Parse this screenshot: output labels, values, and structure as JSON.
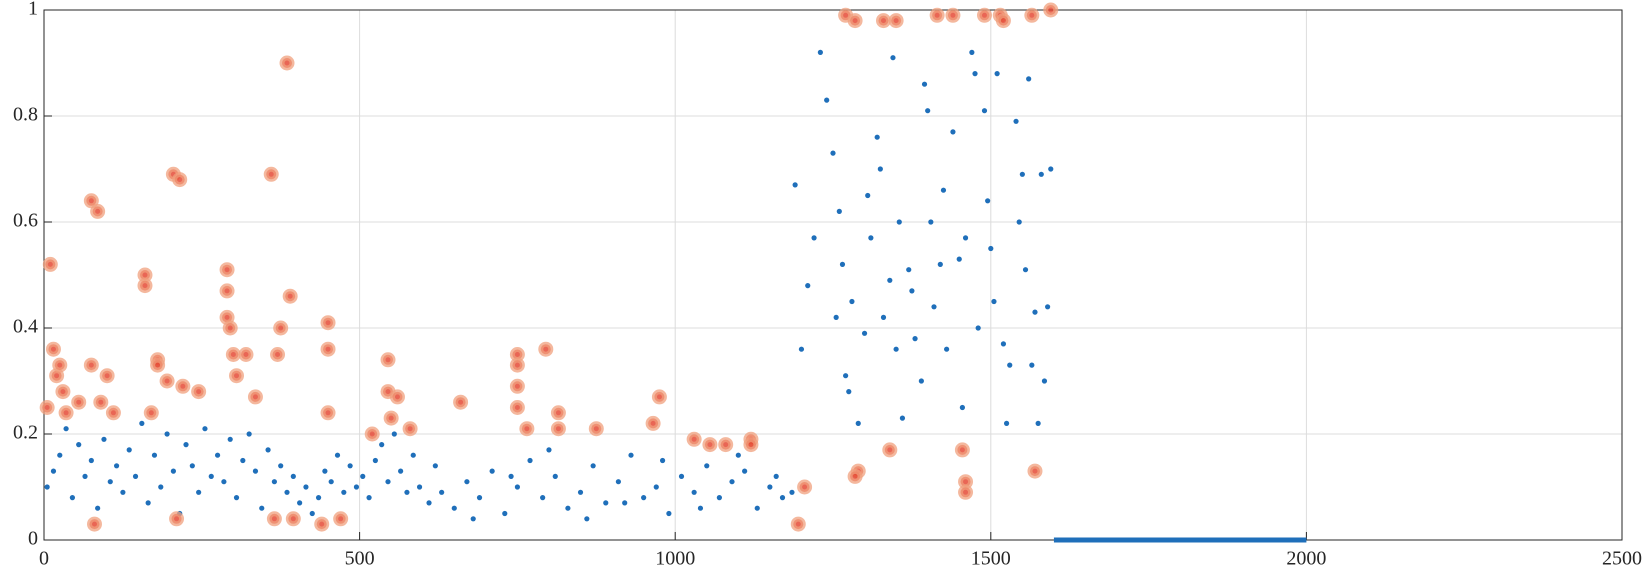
{
  "chart_data": {
    "type": "scatter",
    "xlim": [
      0,
      2500
    ],
    "xticks": [
      0,
      500,
      1000,
      1500,
      2000,
      2500
    ],
    "ylim": [
      0,
      1
    ],
    "yticks": [
      0,
      0.2,
      0.4,
      0.6,
      0.8,
      1
    ],
    "grid": true,
    "series": [
      {
        "style": "dot",
        "color": "#1f6fba",
        "x": [
          5,
          15,
          25,
          35,
          45,
          55,
          65,
          75,
          85,
          95,
          105,
          115,
          125,
          135,
          145,
          155,
          165,
          175,
          185,
          195,
          205,
          215,
          225,
          235,
          245,
          255,
          265,
          275,
          285,
          295,
          305,
          315,
          325,
          335,
          345,
          355,
          365,
          375,
          385,
          395,
          405,
          415,
          425,
          435,
          445,
          455,
          465,
          475,
          485,
          495,
          505,
          515,
          525,
          535,
          545,
          555,
          565,
          575,
          585,
          595,
          610,
          630,
          650,
          670,
          690,
          710,
          730,
          750,
          770,
          790,
          810,
          830,
          850,
          870,
          890,
          910,
          930,
          950,
          970,
          990,
          1010,
          1030,
          1050,
          1070,
          1090,
          1110,
          1130,
          1150,
          1170,
          1185,
          620,
          680,
          740,
          800,
          860,
          920,
          980,
          1040,
          1100,
          1160,
          1190,
          1200,
          1210,
          1220,
          1230,
          1240,
          1250,
          1255,
          1260,
          1265,
          1270,
          1275,
          1280,
          1290,
          1300,
          1305,
          1310,
          1320,
          1325,
          1330,
          1340,
          1345,
          1350,
          1355,
          1360,
          1370,
          1375,
          1380,
          1390,
          1395,
          1400,
          1405,
          1410,
          1420,
          1425,
          1430,
          1440,
          1450,
          1455,
          1460,
          1470,
          1475,
          1480,
          1490,
          1495,
          1500,
          1505,
          1510,
          1520,
          1525,
          1530,
          1540,
          1545,
          1550,
          1555,
          1560,
          1565,
          1570,
          1575,
          1580,
          1585,
          1590,
          1595
        ],
        "values": [
          0.1,
          0.13,
          0.16,
          0.21,
          0.08,
          0.18,
          0.12,
          0.15,
          0.06,
          0.19,
          0.11,
          0.14,
          0.09,
          0.17,
          0.12,
          0.22,
          0.07,
          0.16,
          0.1,
          0.2,
          0.13,
          0.05,
          0.18,
          0.14,
          0.09,
          0.21,
          0.12,
          0.16,
          0.11,
          0.19,
          0.08,
          0.15,
          0.2,
          0.13,
          0.06,
          0.17,
          0.11,
          0.14,
          0.09,
          0.12,
          0.07,
          0.1,
          0.05,
          0.08,
          0.13,
          0.11,
          0.16,
          0.09,
          0.14,
          0.1,
          0.12,
          0.08,
          0.15,
          0.18,
          0.11,
          0.2,
          0.13,
          0.09,
          0.16,
          0.1,
          0.07,
          0.09,
          0.06,
          0.11,
          0.08,
          0.13,
          0.05,
          0.1,
          0.15,
          0.08,
          0.12,
          0.06,
          0.09,
          0.14,
          0.07,
          0.11,
          0.16,
          0.08,
          0.1,
          0.05,
          0.12,
          0.09,
          0.14,
          0.08,
          0.11,
          0.13,
          0.06,
          0.1,
          0.08,
          0.09,
          0.14,
          0.04,
          0.12,
          0.17,
          0.04,
          0.07,
          0.15,
          0.06,
          0.16,
          0.12,
          0.67,
          0.36,
          0.48,
          0.57,
          0.92,
          0.83,
          0.73,
          0.42,
          0.62,
          0.52,
          0.31,
          0.28,
          0.45,
          0.22,
          0.39,
          0.65,
          0.57,
          0.76,
          0.7,
          0.42,
          0.49,
          0.91,
          0.36,
          0.6,
          0.23,
          0.51,
          0.47,
          0.38,
          0.3,
          0.86,
          0.81,
          0.6,
          0.44,
          0.52,
          0.66,
          0.36,
          0.77,
          0.53,
          0.25,
          0.57,
          0.92,
          0.88,
          0.4,
          0.81,
          0.64,
          0.55,
          0.45,
          0.88,
          0.37,
          0.22,
          0.33,
          0.79,
          0.6,
          0.69,
          0.51,
          0.87,
          0.33,
          0.43,
          0.22,
          0.69,
          0.3,
          0.44,
          0.7
        ]
      },
      {
        "style": "halo",
        "color": "#e4402a",
        "x": [
          5,
          10,
          15,
          20,
          25,
          30,
          35,
          55,
          75,
          80,
          85,
          75,
          90,
          100,
          110,
          160,
          160,
          170,
          180,
          180,
          195,
          205,
          210,
          215,
          220,
          245,
          290,
          290,
          290,
          295,
          300,
          305,
          320,
          335,
          360,
          365,
          370,
          375,
          385,
          390,
          395,
          440,
          450,
          450,
          450,
          470,
          520,
          545,
          545,
          550,
          560,
          580,
          660,
          750,
          750,
          750,
          750,
          765,
          795,
          815,
          815,
          875,
          965,
          975,
          1030,
          1055,
          1080,
          1120,
          1120,
          1195,
          1205,
          1270,
          1285,
          1290,
          1285,
          1330,
          1340,
          1350,
          1415,
          1440,
          1455,
          1460,
          1460,
          1490,
          1515,
          1520,
          1565,
          1570,
          1595
        ],
        "values": [
          0.25,
          0.52,
          0.36,
          0.31,
          0.33,
          0.28,
          0.24,
          0.26,
          0.64,
          0.03,
          0.62,
          0.33,
          0.26,
          0.31,
          0.24,
          0.5,
          0.48,
          0.24,
          0.34,
          0.33,
          0.3,
          0.69,
          0.04,
          0.68,
          0.29,
          0.28,
          0.51,
          0.47,
          0.42,
          0.4,
          0.35,
          0.31,
          0.35,
          0.27,
          0.69,
          0.04,
          0.35,
          0.4,
          0.9,
          0.46,
          0.04,
          0.03,
          0.41,
          0.36,
          0.24,
          0.04,
          0.2,
          0.34,
          0.28,
          0.23,
          0.27,
          0.21,
          0.26,
          0.35,
          0.33,
          0.29,
          0.25,
          0.21,
          0.36,
          0.24,
          0.21,
          0.21,
          0.22,
          0.27,
          0.19,
          0.18,
          0.18,
          0.19,
          0.18,
          0.03,
          0.1,
          0.99,
          0.98,
          0.13,
          0.12,
          0.98,
          0.17,
          0.98,
          0.99,
          0.99,
          0.17,
          0.11,
          0.09,
          0.99,
          0.99,
          0.98,
          0.99,
          0.13,
          1.0
        ]
      },
      {
        "style": "line",
        "color": "#1f6fba",
        "x": [
          1600,
          2000
        ],
        "values": [
          0,
          0
        ]
      }
    ]
  }
}
